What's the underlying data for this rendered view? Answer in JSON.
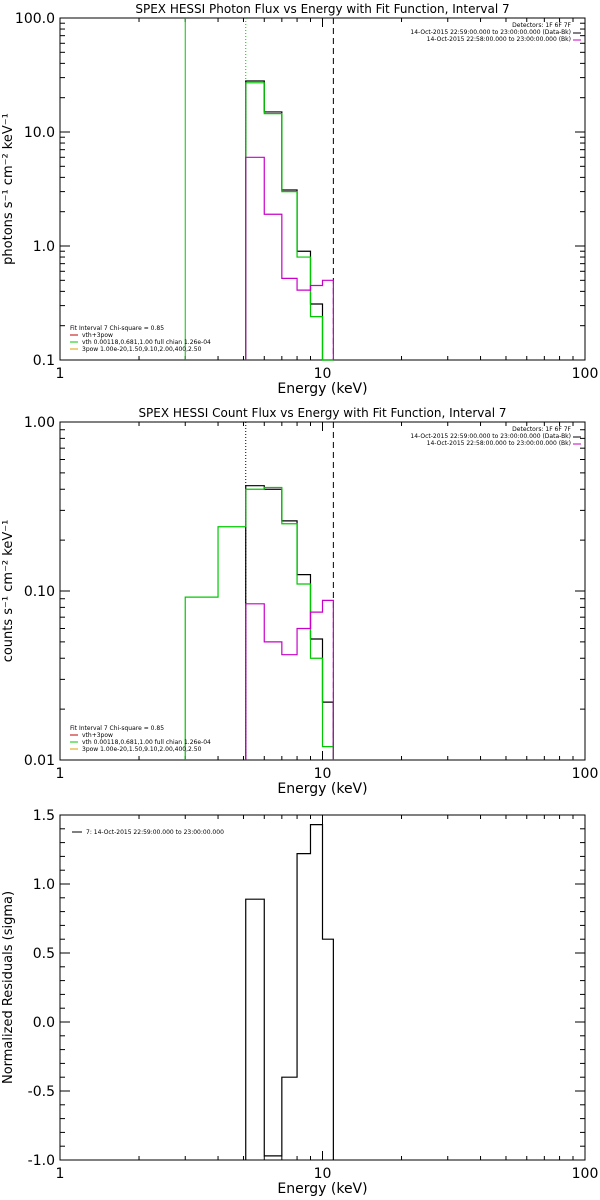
{
  "colors": {
    "black": "#000000",
    "green": "#00c800",
    "magenta": "#c800c8",
    "orange": "#e0a000",
    "red": "#c00000"
  },
  "chart_data": [
    {
      "type": "line",
      "title": "SPEX HESSI Photon Flux vs Energy with Fit Function, Interval 7",
      "xlabel": "Energy (keV)",
      "ylabel": "photons s⁻¹ cm⁻² keV⁻¹",
      "xscale": "log",
      "yscale": "log",
      "xlim": [
        1,
        100
      ],
      "ylim": [
        0.1,
        100
      ],
      "xticks": [
        {
          "v": 1,
          "label": "1"
        },
        {
          "v": 10,
          "label": "10"
        },
        {
          "v": 100,
          "label": "100"
        }
      ],
      "yticks": [
        {
          "v": 0.1,
          "label": "0.1"
        },
        {
          "v": 1,
          "label": "1.0"
        },
        {
          "v": 10,
          "label": "10.0"
        },
        {
          "v": 100,
          "label": "100.0"
        }
      ],
      "header_right": [
        "Detectors: 1F 6F 7F",
        "14-Oct-2015 22:59:00.000 to 23:00:00.000 (Data-Bk)",
        "14-Oct-2015 22:58:00.000 to 23:00:00.000 (Bk)"
      ],
      "legend": {
        "fit_line": "Fit Interval 7   Chi-square = 0.85",
        "entries": [
          {
            "label": "vth+3pow",
            "color": "#c00000"
          },
          {
            "label": "vth 0.00118,0.681,1.00  full chian 1.26e-04",
            "color": "#00c800"
          },
          {
            "label": "3pow 1.00e-20,1.50,9.10,2.00,400,2.50",
            "color": "#e0a000"
          }
        ]
      },
      "vlines": [
        {
          "x": 3.0,
          "color": "#00c800",
          "style": "solid"
        },
        {
          "x": 5.1,
          "color": "#00c800",
          "style": "dotted"
        },
        {
          "x": 11.0,
          "color": "#000000",
          "style": "dashed"
        }
      ],
      "series": [
        {
          "color": "#000000",
          "edges": [
            5.1,
            6.0,
            7.0,
            8.0,
            9.0,
            10.0,
            11.0
          ],
          "values": [
            28,
            15,
            3.1,
            0.9,
            0.31,
            0.1
          ]
        },
        {
          "color": "#00c800",
          "edges": [
            5.1,
            6.0,
            7.0,
            8.0,
            9.0,
            10.0,
            11.0
          ],
          "values": [
            27,
            14.5,
            3.0,
            0.8,
            0.24,
            0.1
          ]
        },
        {
          "color": "#c800c8",
          "edges": [
            5.1,
            6.0,
            7.0,
            8.0,
            9.0,
            10.0,
            11.0
          ],
          "values": [
            6.0,
            1.9,
            0.52,
            0.41,
            0.45,
            0.5
          ]
        }
      ]
    },
    {
      "type": "line",
      "title": "SPEX HESSI Count Flux vs Energy with Fit Function, Interval 7",
      "xlabel": "Energy (keV)",
      "ylabel": "counts s⁻¹ cm⁻² keV⁻¹",
      "xscale": "log",
      "yscale": "log",
      "xlim": [
        1,
        100
      ],
      "ylim": [
        0.01,
        1
      ],
      "xticks": [
        {
          "v": 1,
          "label": "1"
        },
        {
          "v": 10,
          "label": "10"
        },
        {
          "v": 100,
          "label": "100"
        }
      ],
      "yticks": [
        {
          "v": 0.01,
          "label": "0.01"
        },
        {
          "v": 0.1,
          "label": "0.10"
        },
        {
          "v": 1,
          "label": "1.00"
        }
      ],
      "header_right": [
        "Detectors: 1F 6F 7F",
        "14-Oct-2015 22:59:00.000 to 23:00:00.000 (Data-Bk)",
        "14-Oct-2015 22:58:00.000 to 23:00:00.000 (Bk)"
      ],
      "legend": {
        "fit_line": "Fit Interval 7   Chi-square = 0.85",
        "entries": [
          {
            "label": "vth+3pow",
            "color": "#c00000"
          },
          {
            "label": "vth 0.00118,0.681,1.00  full chian 1.26e-04",
            "color": "#00c800"
          },
          {
            "label": "3pow 1.00e-20,1.50,9.10,2.00,400,2.50",
            "color": "#e0a000"
          }
        ]
      },
      "vlines": [
        {
          "x": 5.1,
          "color": "#000000",
          "style": "dotted"
        },
        {
          "x": 11.0,
          "color": "#000000",
          "style": "dashed"
        }
      ],
      "series": [
        {
          "color": "#000000",
          "edges": [
            5.1,
            6.0,
            7.0,
            8.0,
            9.0,
            10.0,
            11.0
          ],
          "values": [
            0.42,
            0.4,
            0.26,
            0.125,
            0.052,
            0.022
          ]
        },
        {
          "color": "#00c800",
          "edges": [
            3.0,
            4.0,
            5.1,
            6.0,
            7.0,
            8.0,
            9.0,
            10.0,
            11.0
          ],
          "values": [
            0.092,
            0.24,
            0.4,
            0.41,
            0.25,
            0.11,
            0.04,
            0.012
          ]
        },
        {
          "color": "#c800c8",
          "edges": [
            5.1,
            6.0,
            7.0,
            8.0,
            9.0,
            10.0,
            11.0
          ],
          "values": [
            0.084,
            0.05,
            0.042,
            0.06,
            0.075,
            0.088
          ]
        }
      ]
    },
    {
      "type": "line",
      "title": "",
      "xlabel": "Energy (keV)",
      "ylabel": "Normalized Residuals (sigma)",
      "xscale": "log",
      "yscale": "linear",
      "xlim": [
        1,
        100
      ],
      "ylim": [
        -1.0,
        1.5
      ],
      "xticks": [
        {
          "v": 1,
          "label": "1"
        },
        {
          "v": 10,
          "label": "10"
        },
        {
          "v": 100,
          "label": "100"
        }
      ],
      "yticks": [
        {
          "v": -1.0,
          "label": "-1.0"
        },
        {
          "v": -0.5,
          "label": "-0.5"
        },
        {
          "v": 0.0,
          "label": "0.0"
        },
        {
          "v": 0.5,
          "label": "0.5"
        },
        {
          "v": 1.0,
          "label": "1.0"
        },
        {
          "v": 1.5,
          "label": "1.5"
        }
      ],
      "header_right": [],
      "legend": {
        "fit_line": "",
        "entries": [
          {
            "label": "7: 14-Oct-2015 22:59:00.000 to 23:00:00.000",
            "color": "#000000"
          }
        ]
      },
      "vlines": [],
      "series": [
        {
          "color": "#000000",
          "edges": [
            5.1,
            6.0,
            7.0,
            8.0,
            9.0,
            10.0,
            11.0
          ],
          "values": [
            0.89,
            -0.97,
            -0.4,
            1.22,
            1.43,
            0.6
          ]
        }
      ]
    }
  ]
}
